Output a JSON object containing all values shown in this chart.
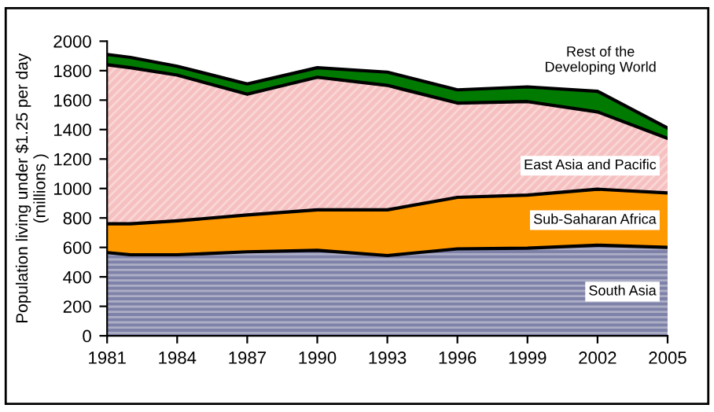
{
  "chart_data": {
    "type": "area",
    "stacked": true,
    "ylabel": "Population living under $1.25 per day\n(millions )",
    "x": [
      1981,
      1982,
      1984,
      1987,
      1990,
      1993,
      1996,
      1999,
      2002,
      2005
    ],
    "series": [
      {
        "name": "South Asia",
        "color": "#7f82a8",
        "values": [
          565,
          550,
          550,
          570,
          580,
          545,
          590,
          595,
          615,
          600
        ]
      },
      {
        "name": "Sub-Saharan Africa",
        "color": "#ff9900",
        "values": [
          195,
          210,
          230,
          250,
          275,
          310,
          350,
          360,
          380,
          370
        ]
      },
      {
        "name": "East Asia and Pacific",
        "color": "#f6c0c0",
        "values": [
          1080,
          1060,
          990,
          820,
          900,
          845,
          640,
          635,
          525,
          370
        ]
      },
      {
        "name": "Rest of the\nDeveloping World",
        "color": "#007a00",
        "values": [
          70,
          70,
          60,
          70,
          65,
          90,
          90,
          100,
          140,
          70
        ]
      }
    ],
    "xlim": [
      1981,
      2005
    ],
    "xticks": [
      1981,
      1984,
      1987,
      1990,
      1993,
      1996,
      1999,
      2002,
      2005
    ],
    "ylim": [
      0,
      2000
    ],
    "yticks": [
      0,
      200,
      400,
      600,
      800,
      1000,
      1200,
      1400,
      1600,
      1800,
      2000
    ],
    "grid": false,
    "legend": false
  }
}
